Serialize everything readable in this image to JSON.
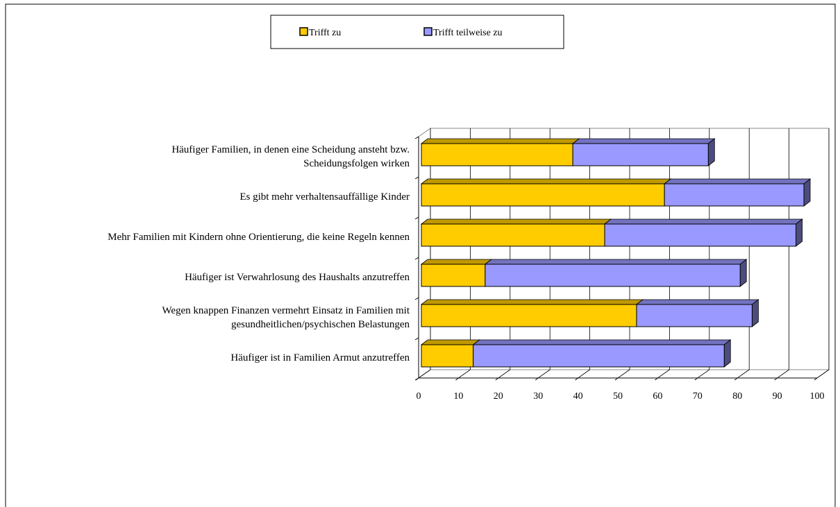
{
  "chart_data": {
    "type": "bar",
    "orientation": "horizontal",
    "stacked": true,
    "categories": [
      "Häufiger Familien, in denen eine Scheidung ansteht bzw.\nScheidungsfolgen wirken",
      "Es gibt mehr verhaltensauffällige Kinder",
      "Mehr Familien mit Kindern ohne Orientierung, die keine Regeln kennen",
      "Häufiger ist Verwahrlosung des Haushalts anzutreffen",
      "Wegen knappen Finanzen vermehrt Einsatz in Familien mit\ngesundheitlichen/psychischen Belastungen",
      "Häufiger ist in Familien Armut anzutreffen"
    ],
    "series": [
      {
        "name": "Trifft zu",
        "color": "#ffcc00",
        "values": [
          38,
          61,
          46,
          16,
          54,
          13
        ]
      },
      {
        "name": "Trifft teilweise zu",
        "color": "#9999ff",
        "values": [
          34,
          35,
          48,
          64,
          29,
          63
        ]
      }
    ],
    "xlim": [
      0,
      100
    ],
    "xticks": [
      0,
      10,
      20,
      30,
      40,
      50,
      60,
      70,
      80,
      90,
      100
    ],
    "grid": true,
    "legend": "top"
  }
}
